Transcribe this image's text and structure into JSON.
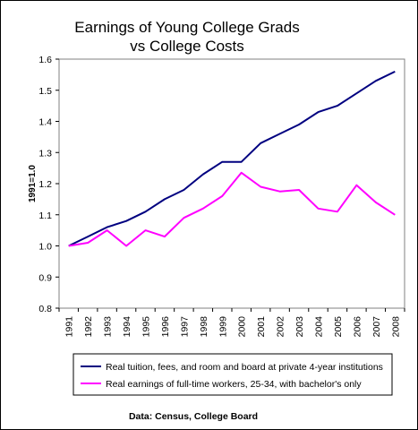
{
  "chart_data": {
    "type": "line",
    "title_lines": [
      "Earnings of Young College Grads",
      "vs College Costs"
    ],
    "xlabel": "",
    "ylabel": "1991=1.0",
    "ylim": [
      0.8,
      1.6
    ],
    "yticks": [
      "0.8",
      "0.9",
      "1.0",
      "1.1",
      "1.2",
      "1.3",
      "1.4",
      "1.5",
      "1.6"
    ],
    "categories": [
      "1991",
      "1992",
      "1993",
      "1994",
      "1995",
      "1996",
      "1997",
      "1998",
      "1999",
      "2000",
      "2001",
      "2002",
      "2003",
      "2004",
      "2005",
      "2006",
      "2007",
      "2008"
    ],
    "grid": false,
    "legend_position": "bottom",
    "series": [
      {
        "name": "Real tuition, fees, and room and board at private 4-year institutions",
        "color": "#000080",
        "values": [
          1.0,
          1.03,
          1.06,
          1.08,
          1.11,
          1.15,
          1.18,
          1.23,
          1.27,
          1.27,
          1.33,
          1.36,
          1.39,
          1.43,
          1.45,
          1.49,
          1.53,
          1.56
        ]
      },
      {
        "name": "Real earnings of full-time workers, 25-34, with bachelor's only",
        "color": "#ff00ff",
        "values": [
          1.0,
          1.01,
          1.05,
          1.0,
          1.05,
          1.03,
          1.09,
          1.12,
          1.16,
          1.235,
          1.19,
          1.175,
          1.18,
          1.12,
          1.11,
          1.195,
          1.14,
          1.1
        ]
      }
    ],
    "source": "Data: Census, College Board"
  }
}
